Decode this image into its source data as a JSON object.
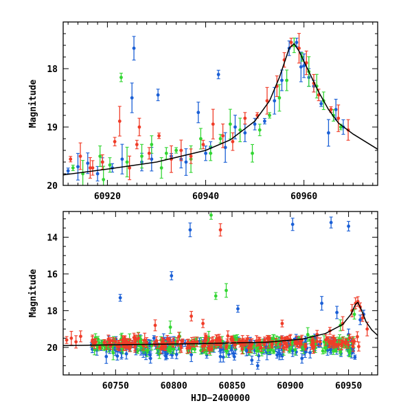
{
  "chart_data": [
    {
      "type": "scatter",
      "title": "",
      "xlabel": "",
      "ylabel": "Magnitude",
      "xlim": [
        60911,
        60975
      ],
      "ylim": [
        20,
        17.2
      ],
      "y_inverted": true,
      "x_ticks": [
        60920,
        60940,
        60960
      ],
      "x_tick_labels": [
        "60920",
        "60940",
        "60960"
      ],
      "y_ticks": [
        18,
        19,
        20
      ],
      "y_tick_labels": [
        "18",
        "19",
        "20"
      ],
      "grid": false,
      "series": [
        {
          "name": "blue",
          "color": "#1a5fd6",
          "x": [
            60912,
            60914,
            60916,
            60918,
            60921,
            60923,
            60925.4,
            60927,
            60930.3,
            60933,
            60936,
            60938.5,
            60940,
            60942.6,
            60944,
            60946,
            60948,
            60950,
            60952,
            60954,
            60955.5,
            60957,
            60958.5,
            60959.4,
            60960,
            60961,
            60962,
            60963.5,
            60965,
            60966.5,
            60968,
            60919,
            60925,
            60929,
            60935,
            60941
          ],
          "y": [
            19.75,
            19.68,
            19.62,
            19.8,
            19.7,
            19.55,
            17.65,
            19.6,
            18.45,
            19.5,
            19.6,
            18.75,
            19.45,
            18.1,
            19.35,
            19.0,
            19.1,
            18.95,
            18.9,
            18.55,
            18.2,
            17.65,
            17.55,
            17.97,
            17.95,
            18.15,
            18.3,
            18.6,
            19.1,
            18.7,
            19.0,
            19.6,
            18.5,
            19.55,
            19.55,
            19.35
          ]
        },
        {
          "name": "green",
          "color": "#33d633",
          "x": [
            60913,
            60915,
            60918.5,
            60920.5,
            60922.8,
            60924,
            60927,
            60929,
            60932,
            60934,
            60937,
            60939,
            60941,
            60943,
            60945,
            60947,
            60949.5,
            60951,
            60953,
            60955,
            60956.5,
            60958,
            60959.6,
            60961,
            60962.6,
            60964,
            60966,
            60967.5,
            60919.2,
            60931
          ],
          "y": [
            19.7,
            19.8,
            19.5,
            19.65,
            18.15,
            19.6,
            19.5,
            19.3,
            19.45,
            19.4,
            19.55,
            19.2,
            19.45,
            19.2,
            18.95,
            19.05,
            19.45,
            19.05,
            18.8,
            18.5,
            18.2,
            17.6,
            17.8,
            18.05,
            18.3,
            18.55,
            18.8,
            19.0,
            19.9,
            19.7
          ]
        },
        {
          "name": "red",
          "color": "#f03c28",
          "x": [
            60912.5,
            60914.5,
            60916.5,
            60919,
            60921.5,
            60922.5,
            60924.5,
            60926.5,
            60928.5,
            60930.5,
            60933,
            60935,
            60937,
            60939.5,
            60941.5,
            60943.5,
            60945.5,
            60948,
            60950.5,
            60952.5,
            60954.5,
            60956,
            60957.4,
            60959,
            60960.5,
            60962,
            60963,
            60965.5,
            60967,
            60969,
            60917,
            60926
          ],
          "y": [
            19.55,
            19.5,
            19.7,
            19.6,
            19.25,
            18.9,
            19.7,
            19.0,
            19.45,
            19.15,
            19.55,
            19.4,
            19.5,
            19.3,
            18.95,
            19.15,
            19.25,
            18.85,
            18.8,
            18.55,
            18.3,
            17.85,
            17.55,
            17.65,
            17.9,
            18.25,
            18.45,
            18.7,
            18.85,
            19.05,
            19.7,
            19.3
          ]
        },
        {
          "name": "model",
          "color": "#000000",
          "style": "line",
          "x": [
            60911,
            60920,
            60930,
            60940,
            60945,
            60950,
            60953,
            60955,
            60957,
            60958,
            60959,
            60961,
            60963,
            60965,
            60967,
            60970,
            60975
          ],
          "y": [
            19.82,
            19.72,
            19.6,
            19.4,
            19.22,
            18.9,
            18.55,
            18.15,
            17.65,
            17.57,
            17.7,
            18.05,
            18.4,
            18.7,
            18.93,
            19.12,
            19.38
          ]
        }
      ]
    },
    {
      "type": "scatter",
      "title": "",
      "xlabel": "HJD−2400000",
      "ylabel": "Magnitude",
      "xlim": [
        60705,
        60975
      ],
      "ylim": [
        21.5,
        12.6
      ],
      "y_inverted": true,
      "x_ticks": [
        60750,
        60800,
        60850,
        60900,
        60950
      ],
      "x_tick_labels": [
        "60750",
        "60800",
        "60850",
        "60900",
        "60950"
      ],
      "y_ticks": [
        14,
        16,
        18,
        20
      ],
      "y_tick_labels": [
        "14",
        "16",
        "18",
        "20"
      ],
      "grid": false,
      "series": [
        {
          "name": "blue",
          "color": "#1a5fd6",
          "x": [
            60730,
            60742,
            60755,
            60768,
            60780,
            60797,
            60800,
            60815,
            60826,
            60840,
            60853,
            60867,
            60872,
            60880,
            60893,
            60902,
            60910,
            60921,
            60926,
            60935,
            60940,
            60950,
            60960,
            60963,
            60754,
            60814,
            60902,
            60935,
            60950,
            60798,
            60855,
            60927,
            60940
          ],
          "y": [
            20.1,
            20.5,
            20.3,
            19.9,
            20.6,
            20.2,
            19.6,
            20.4,
            19.8,
            20.5,
            20.1,
            20.7,
            21.0,
            20.3,
            19.7,
            20.2,
            20.6,
            19.5,
            19.8,
            20.0,
            19.9,
            19.3,
            18.5,
            18.2,
            17.3,
            13.6,
            13.3,
            13.2,
            13.4,
            16.1,
            17.9,
            17.6,
            18.1
          ],
          "jitter_cloud": {
            "x_range": [
              60728,
              60958
            ],
            "y_center": 20.0,
            "y_spread": 0.6
          }
        },
        {
          "name": "green",
          "color": "#33d633",
          "x": [
            60735,
            60748,
            60762,
            60777,
            60790,
            60805,
            60818,
            60830,
            60845,
            60858,
            60873,
            60888,
            60901,
            60915,
            60929,
            60943,
            60955,
            60832,
            60836,
            60845,
            60797
          ],
          "y": [
            20.0,
            20.3,
            19.6,
            20.2,
            19.8,
            19.4,
            20.1,
            19.5,
            20.2,
            19.9,
            20.0,
            19.6,
            19.8,
            19.3,
            19.7,
            18.8,
            18.2,
            12.8,
            17.2,
            16.9,
            18.9
          ],
          "jitter_cloud": {
            "x_range": [
              60730,
              60958
            ],
            "y_center": 19.9,
            "y_spread": 0.5
          }
        },
        {
          "name": "red",
          "color": "#f03c28",
          "x": [
            60708,
            60712,
            60716,
            60720,
            60732,
            60746,
            60760,
            60775,
            60790,
            60806,
            60820,
            60836,
            60850,
            60866,
            60881,
            60896,
            60910,
            60923,
            60934,
            60945,
            60953,
            60956,
            60958,
            60960,
            60962,
            60966,
            60840,
            60784,
            60815,
            60825,
            60893
          ],
          "y": [
            19.6,
            19.5,
            19.7,
            19.4,
            19.8,
            19.9,
            19.7,
            19.6,
            19.8,
            19.9,
            19.7,
            19.8,
            19.6,
            19.9,
            19.7,
            19.8,
            19.6,
            19.3,
            19.1,
            18.7,
            18.0,
            17.6,
            17.5,
            17.8,
            18.4,
            19.0,
            13.6,
            18.8,
            18.3,
            18.7,
            18.7
          ],
          "jitter_cloud": {
            "x_range": [
              60726,
              60960
            ],
            "y_center": 19.75,
            "y_spread": 0.4
          }
        },
        {
          "name": "model",
          "color": "#000000",
          "style": "line",
          "x": [
            60705,
            60760,
            60820,
            60880,
            60910,
            60930,
            60945,
            60952,
            60956,
            60958,
            60961,
            60965,
            60970,
            60975
          ],
          "y": [
            19.9,
            19.85,
            19.8,
            19.72,
            19.55,
            19.25,
            18.75,
            18.2,
            17.65,
            17.55,
            17.95,
            18.6,
            19.05,
            19.35
          ]
        }
      ]
    }
  ]
}
